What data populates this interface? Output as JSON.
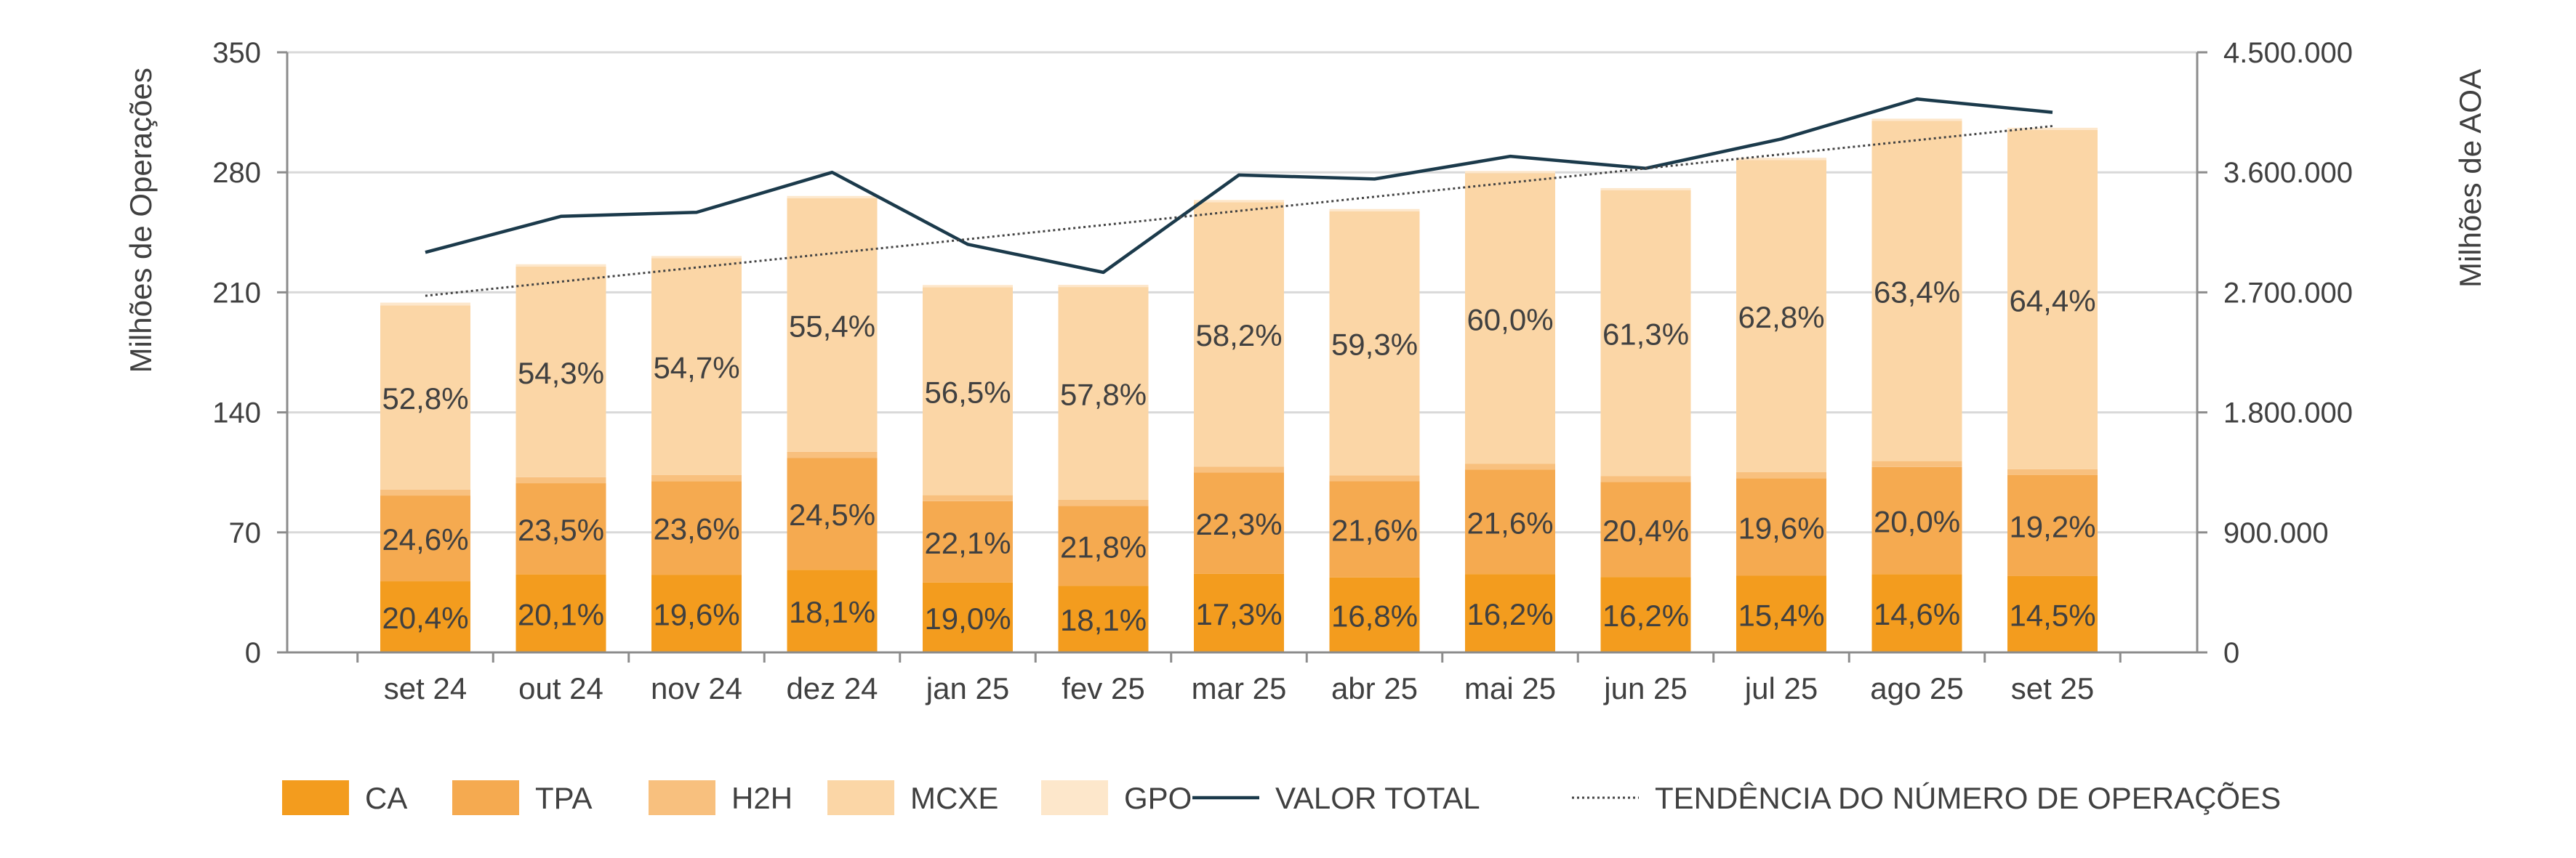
{
  "chart_data": {
    "type": "bar",
    "stacked": true,
    "categories": [
      "set 24",
      "out 24",
      "nov 24",
      "dez 24",
      "jan 25",
      "fev 25",
      "mar 25",
      "abr 25",
      "mai 25",
      "jun 25",
      "jul 25",
      "ago 25",
      "set 25"
    ],
    "ylabel": "Milhões de Operações",
    "y2label": "Milhões de AOA",
    "ylim": [
      0,
      350
    ],
    "y2lim": [
      0,
      4500000
    ],
    "yticks": [
      "0",
      "70",
      "140",
      "210",
      "280",
      "350"
    ],
    "y2ticks": [
      "0",
      "900.000",
      "1.800.000",
      "2.700.000",
      "3.600.000",
      "4.500.000"
    ],
    "series": [
      {
        "name": "CA",
        "color": "#F39C1E",
        "values": [
          41.5,
          45.5,
          45.3,
          48.2,
          40.8,
          38.8,
          45.8,
          43.7,
          45.7,
          44.0,
          44.7,
          45.6,
          44.5
        ],
        "labels": [
          "20,4%",
          "20,1%",
          "19,6%",
          "18,1%",
          "19,0%",
          "18,1%",
          "17,3%",
          "16,8%",
          "16,2%",
          "16,2%",
          "15,4%",
          "14,6%",
          "14,5%"
        ]
      },
      {
        "name": "TPA",
        "color": "#F5AA50",
        "values": [
          50.0,
          53.2,
          54.6,
          65.3,
          47.4,
          46.7,
          59.1,
          56.1,
          60.9,
          55.4,
          56.9,
          62.5,
          58.9
        ],
        "labels": [
          "24,6%",
          "23,5%",
          "23,6%",
          "24,5%",
          "22,1%",
          "21,8%",
          "22,3%",
          "21,6%",
          "21,6%",
          "20,4%",
          "19,6%",
          "20,0%",
          "19,2%"
        ]
      },
      {
        "name": "H2H",
        "color": "#F8C07E",
        "values": [
          3.5,
          3.5,
          3.5,
          3.5,
          3.5,
          3.5,
          3.5,
          3.5,
          3.5,
          3.5,
          3.5,
          3.5,
          3.5
        ],
        "labels": []
      },
      {
        "name": "MCXE",
        "color": "#FBD6A6",
        "values": [
          107.4,
          122.9,
          126.5,
          147.9,
          121.3,
          124.1,
          154.2,
          154.0,
          169.4,
          166.6,
          182.1,
          198.4,
          197.8
        ],
        "labels": [
          "52,8%",
          "54,3%",
          "54,7%",
          "55,4%",
          "56,5%",
          "57,8%",
          "58,2%",
          "59,3%",
          "60,0%",
          "61,3%",
          "62,8%",
          "63,4%",
          "64,4%"
        ]
      },
      {
        "name": "GPO",
        "color": "#FDE7CB",
        "values": [
          1.6,
          1.3,
          1.3,
          1.3,
          1.3,
          1.3,
          1.3,
          1.3,
          1.3,
          1.3,
          1.3,
          1.3,
          1.3
        ],
        "labels": []
      }
    ],
    "line": {
      "name": "VALOR TOTAL",
      "color": "#1B3A4B",
      "values": [
        3000000,
        3270000,
        3300000,
        3600000,
        3060000,
        2850000,
        3580000,
        3550000,
        3720000,
        3630000,
        3850000,
        4150000,
        4050000
      ]
    },
    "trend": {
      "name": "TENDÊNCIA DO NÚMERO DE OPERAÇÕES",
      "color": "#444444",
      "start": 208,
      "end": 307
    },
    "legend": [
      "CA",
      "TPA",
      "H2H",
      "MCXE",
      "GPO",
      "VALOR TOTAL",
      "TENDÊNCIA DO NÚMERO DE OPERAÇÕES"
    ]
  }
}
